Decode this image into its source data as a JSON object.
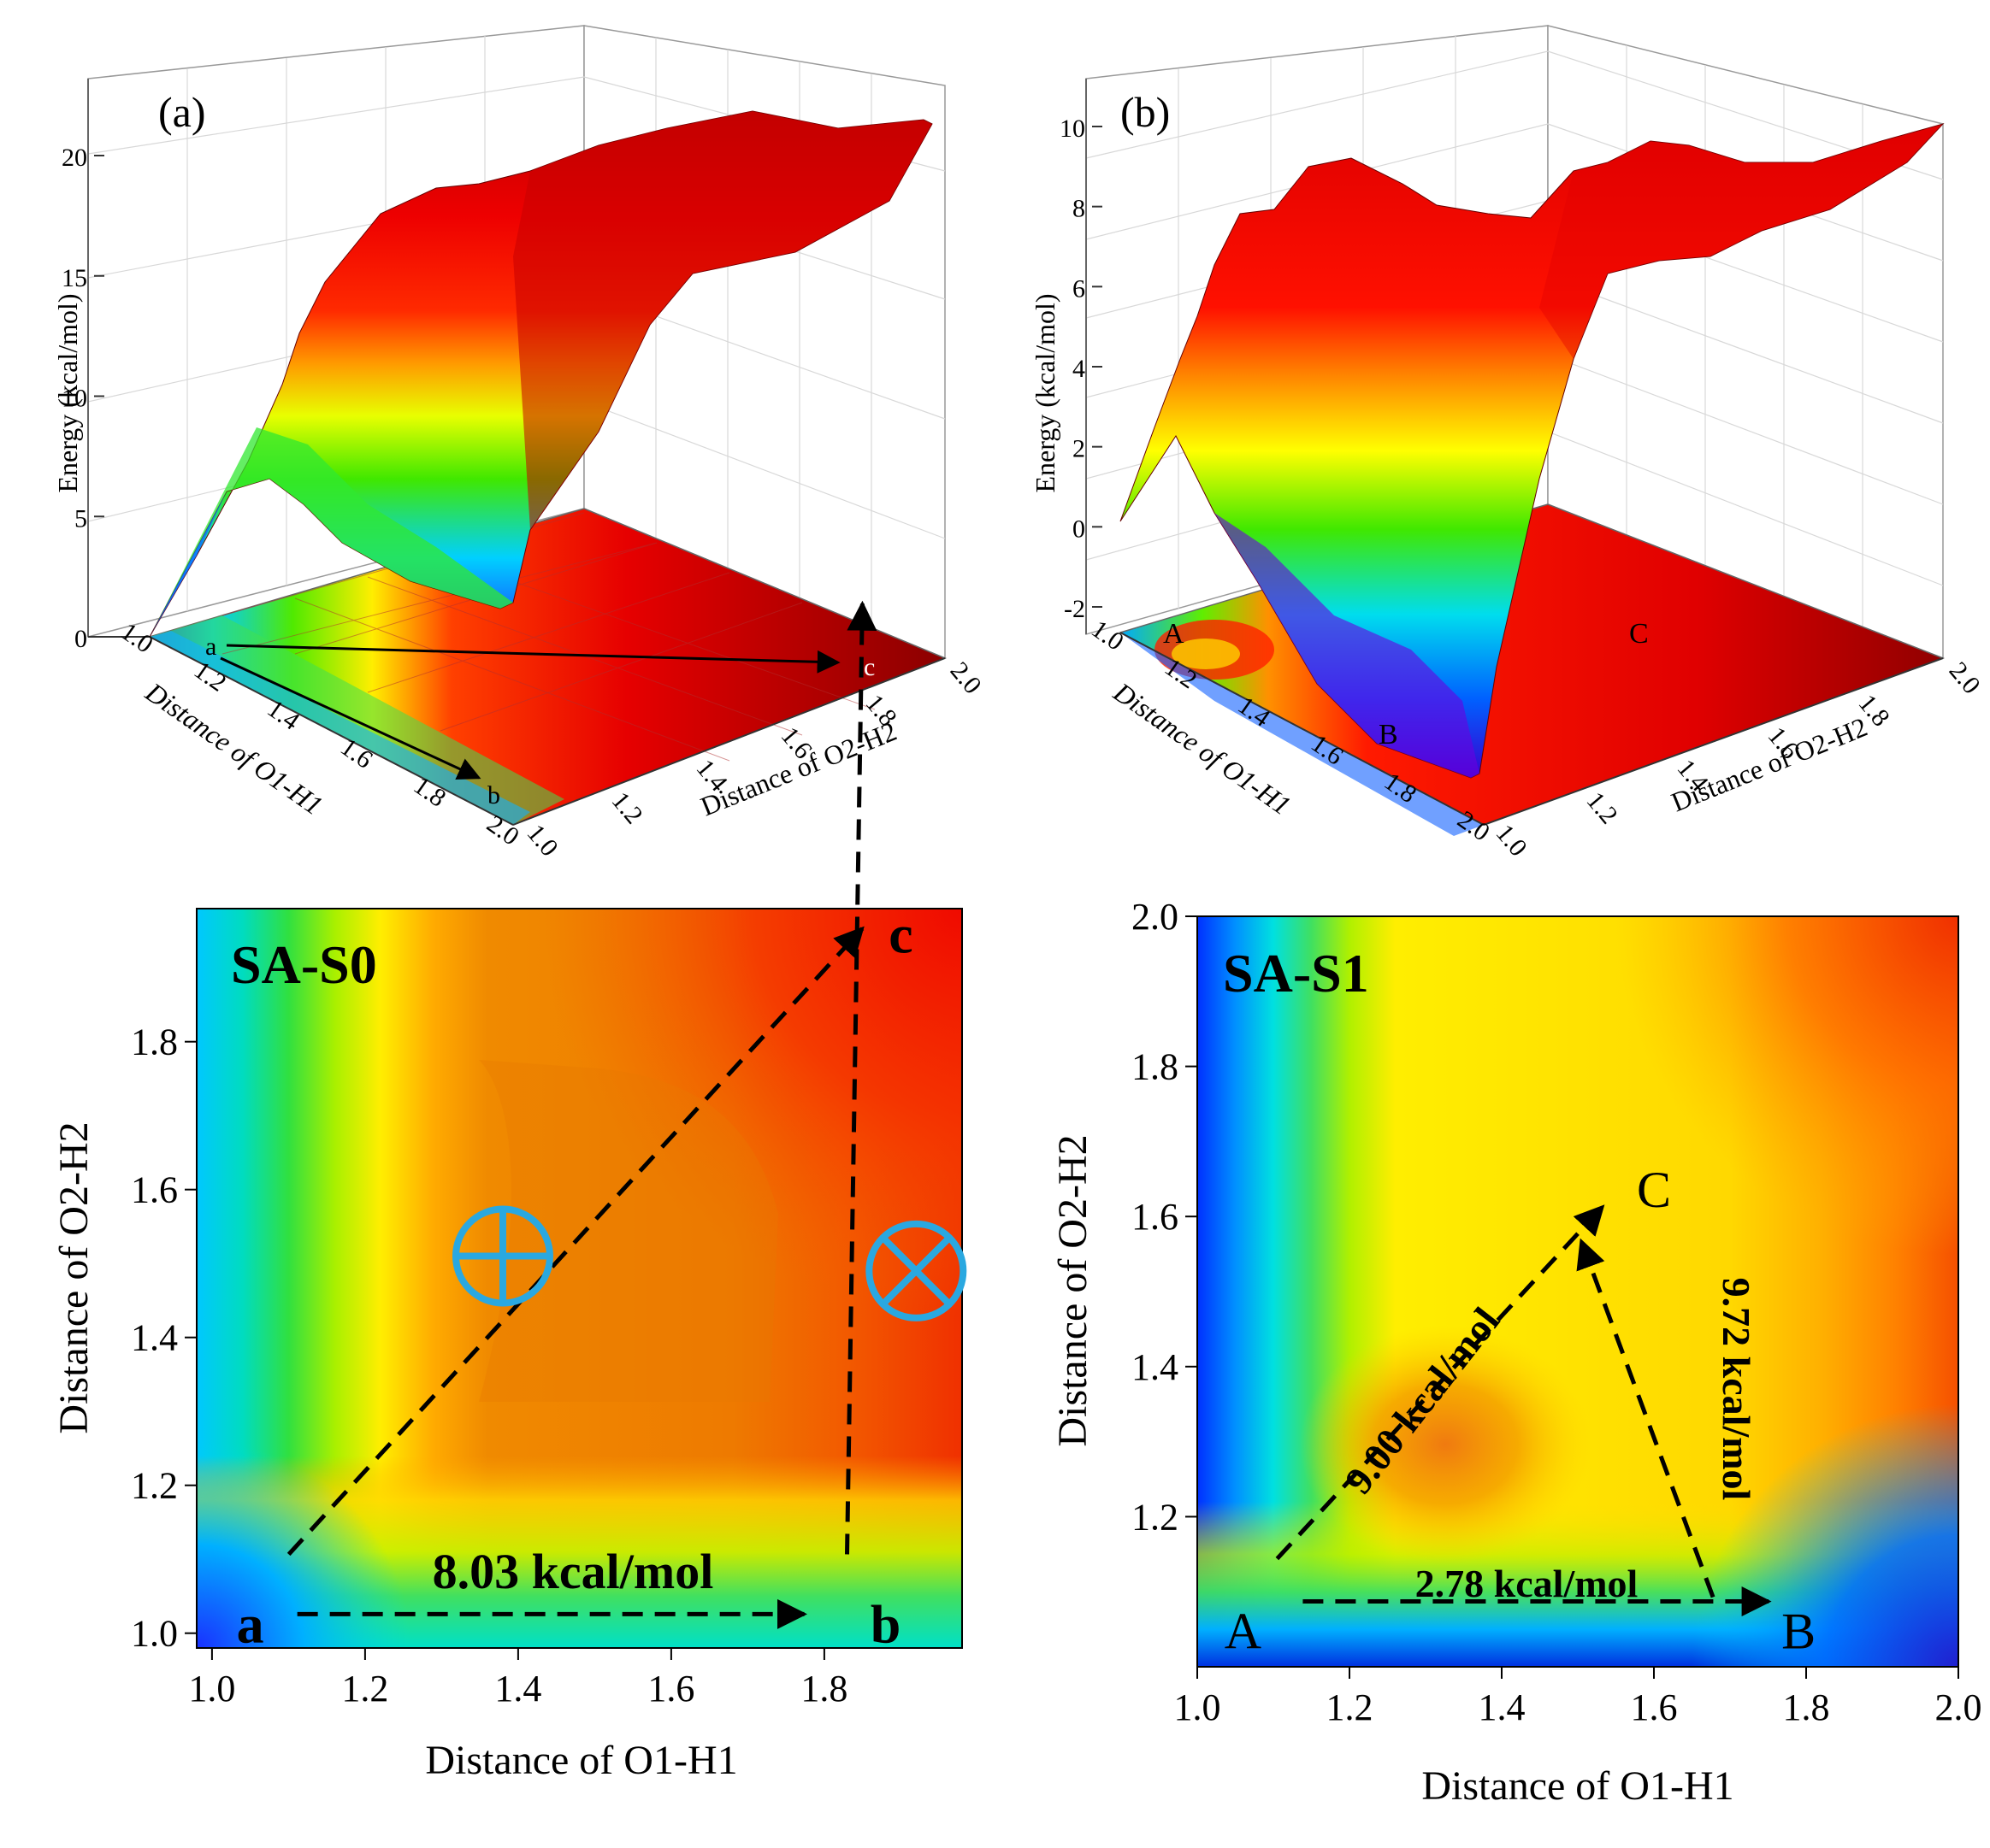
{
  "chart_data": [
    {
      "type": "surface",
      "panel_label": "(a)",
      "z_label": "Energy (kcal/mol)",
      "x_label": "Distance of O1-H1",
      "y_label": "Distance of O2-H2",
      "x_ticks": [
        "1.0",
        "1.2",
        "1.4",
        "1.6",
        "1.8",
        "2.0"
      ],
      "y_ticks": [
        "1.0",
        "1.2",
        "1.4",
        "1.6",
        "1.8",
        "2.0"
      ],
      "z_ticks": [
        "0",
        "5",
        "10",
        "15",
        "20"
      ],
      "zlim": [
        0,
        22
      ],
      "point_labels": [
        "a",
        "b",
        "c"
      ],
      "colormap": [
        "#2200ff",
        "#00c8ff",
        "#37e800",
        "#ffff00",
        "#ff8c00",
        "#ff0000",
        "#8b0000"
      ]
    },
    {
      "type": "surface",
      "panel_label": "(b)",
      "z_label": "Energy (kcal/mol)",
      "x_label": "Distance of O1-H1",
      "y_label": "Distance of O2-H2",
      "x_ticks": [
        "1.0",
        "1.2",
        "1.4",
        "1.6",
        "1.8",
        "2.0"
      ],
      "y_ticks": [
        "1.0",
        "1.2",
        "1.4",
        "1.6",
        "1.8",
        "2.0"
      ],
      "z_ticks": [
        "-2",
        "0",
        "2",
        "4",
        "6",
        "8",
        "10"
      ],
      "zlim": [
        -3,
        10
      ],
      "point_labels": [
        "A",
        "B",
        "C"
      ],
      "colormap": [
        "#2200ff",
        "#00c8ff",
        "#37e800",
        "#ffff00",
        "#ff8c00",
        "#ff0000",
        "#8b0000"
      ]
    },
    {
      "type": "contour",
      "title": "SA-S0",
      "xlabel": "Distance of O1-H1",
      "ylabel": "Distance of O2-H2",
      "xlim": [
        0.98,
        1.98
      ],
      "ylim": [
        0.98,
        1.98
      ],
      "x_ticks": [
        1.0,
        1.2,
        1.4,
        1.6,
        1.8
      ],
      "y_ticks": [
        1.0,
        1.2,
        1.4,
        1.6,
        1.8
      ],
      "points": [
        {
          "label": "a",
          "x": 1.05,
          "y": 1.02
        },
        {
          "label": "b",
          "x": 1.88,
          "y": 1.02
        },
        {
          "label": "c",
          "x": 1.9,
          "y": 1.93
        }
      ],
      "paths": [
        {
          "from": "a",
          "to": "b",
          "label": "8.03 kcal/mol"
        },
        {
          "from": "b",
          "to": "c",
          "label": ""
        },
        {
          "from": "a",
          "to": "c",
          "label": ""
        }
      ],
      "symbols": [
        {
          "name": "circle-plus",
          "x": 1.38,
          "y": 1.51
        },
        {
          "name": "circle-times",
          "x": 1.92,
          "y": 1.49
        }
      ]
    },
    {
      "type": "contour",
      "title": "SA-S1",
      "xlabel": "Distance of O1-H1",
      "ylabel": "Distance of O2-H2",
      "xlim": [
        1.0,
        2.0
      ],
      "ylim": [
        1.0,
        2.0
      ],
      "x_ticks": [
        1.0,
        1.2,
        1.4,
        1.6,
        1.8,
        2.0
      ],
      "y_ticks": [
        1.2,
        1.4,
        1.6,
        1.8,
        2.0
      ],
      "points": [
        {
          "label": "A",
          "x": 1.06,
          "y": 1.07
        },
        {
          "label": "B",
          "x": 1.79,
          "y": 1.07
        },
        {
          "label": "C",
          "x": 1.6,
          "y": 1.63
        }
      ],
      "paths": [
        {
          "from": "A",
          "to": "B",
          "label": "2.78 kcal/mol"
        },
        {
          "from": "A",
          "to": "C",
          "label": "9.00 kcal/mol"
        },
        {
          "from": "B",
          "to": "C",
          "label": "9.72 kcal/mol"
        }
      ]
    }
  ]
}
